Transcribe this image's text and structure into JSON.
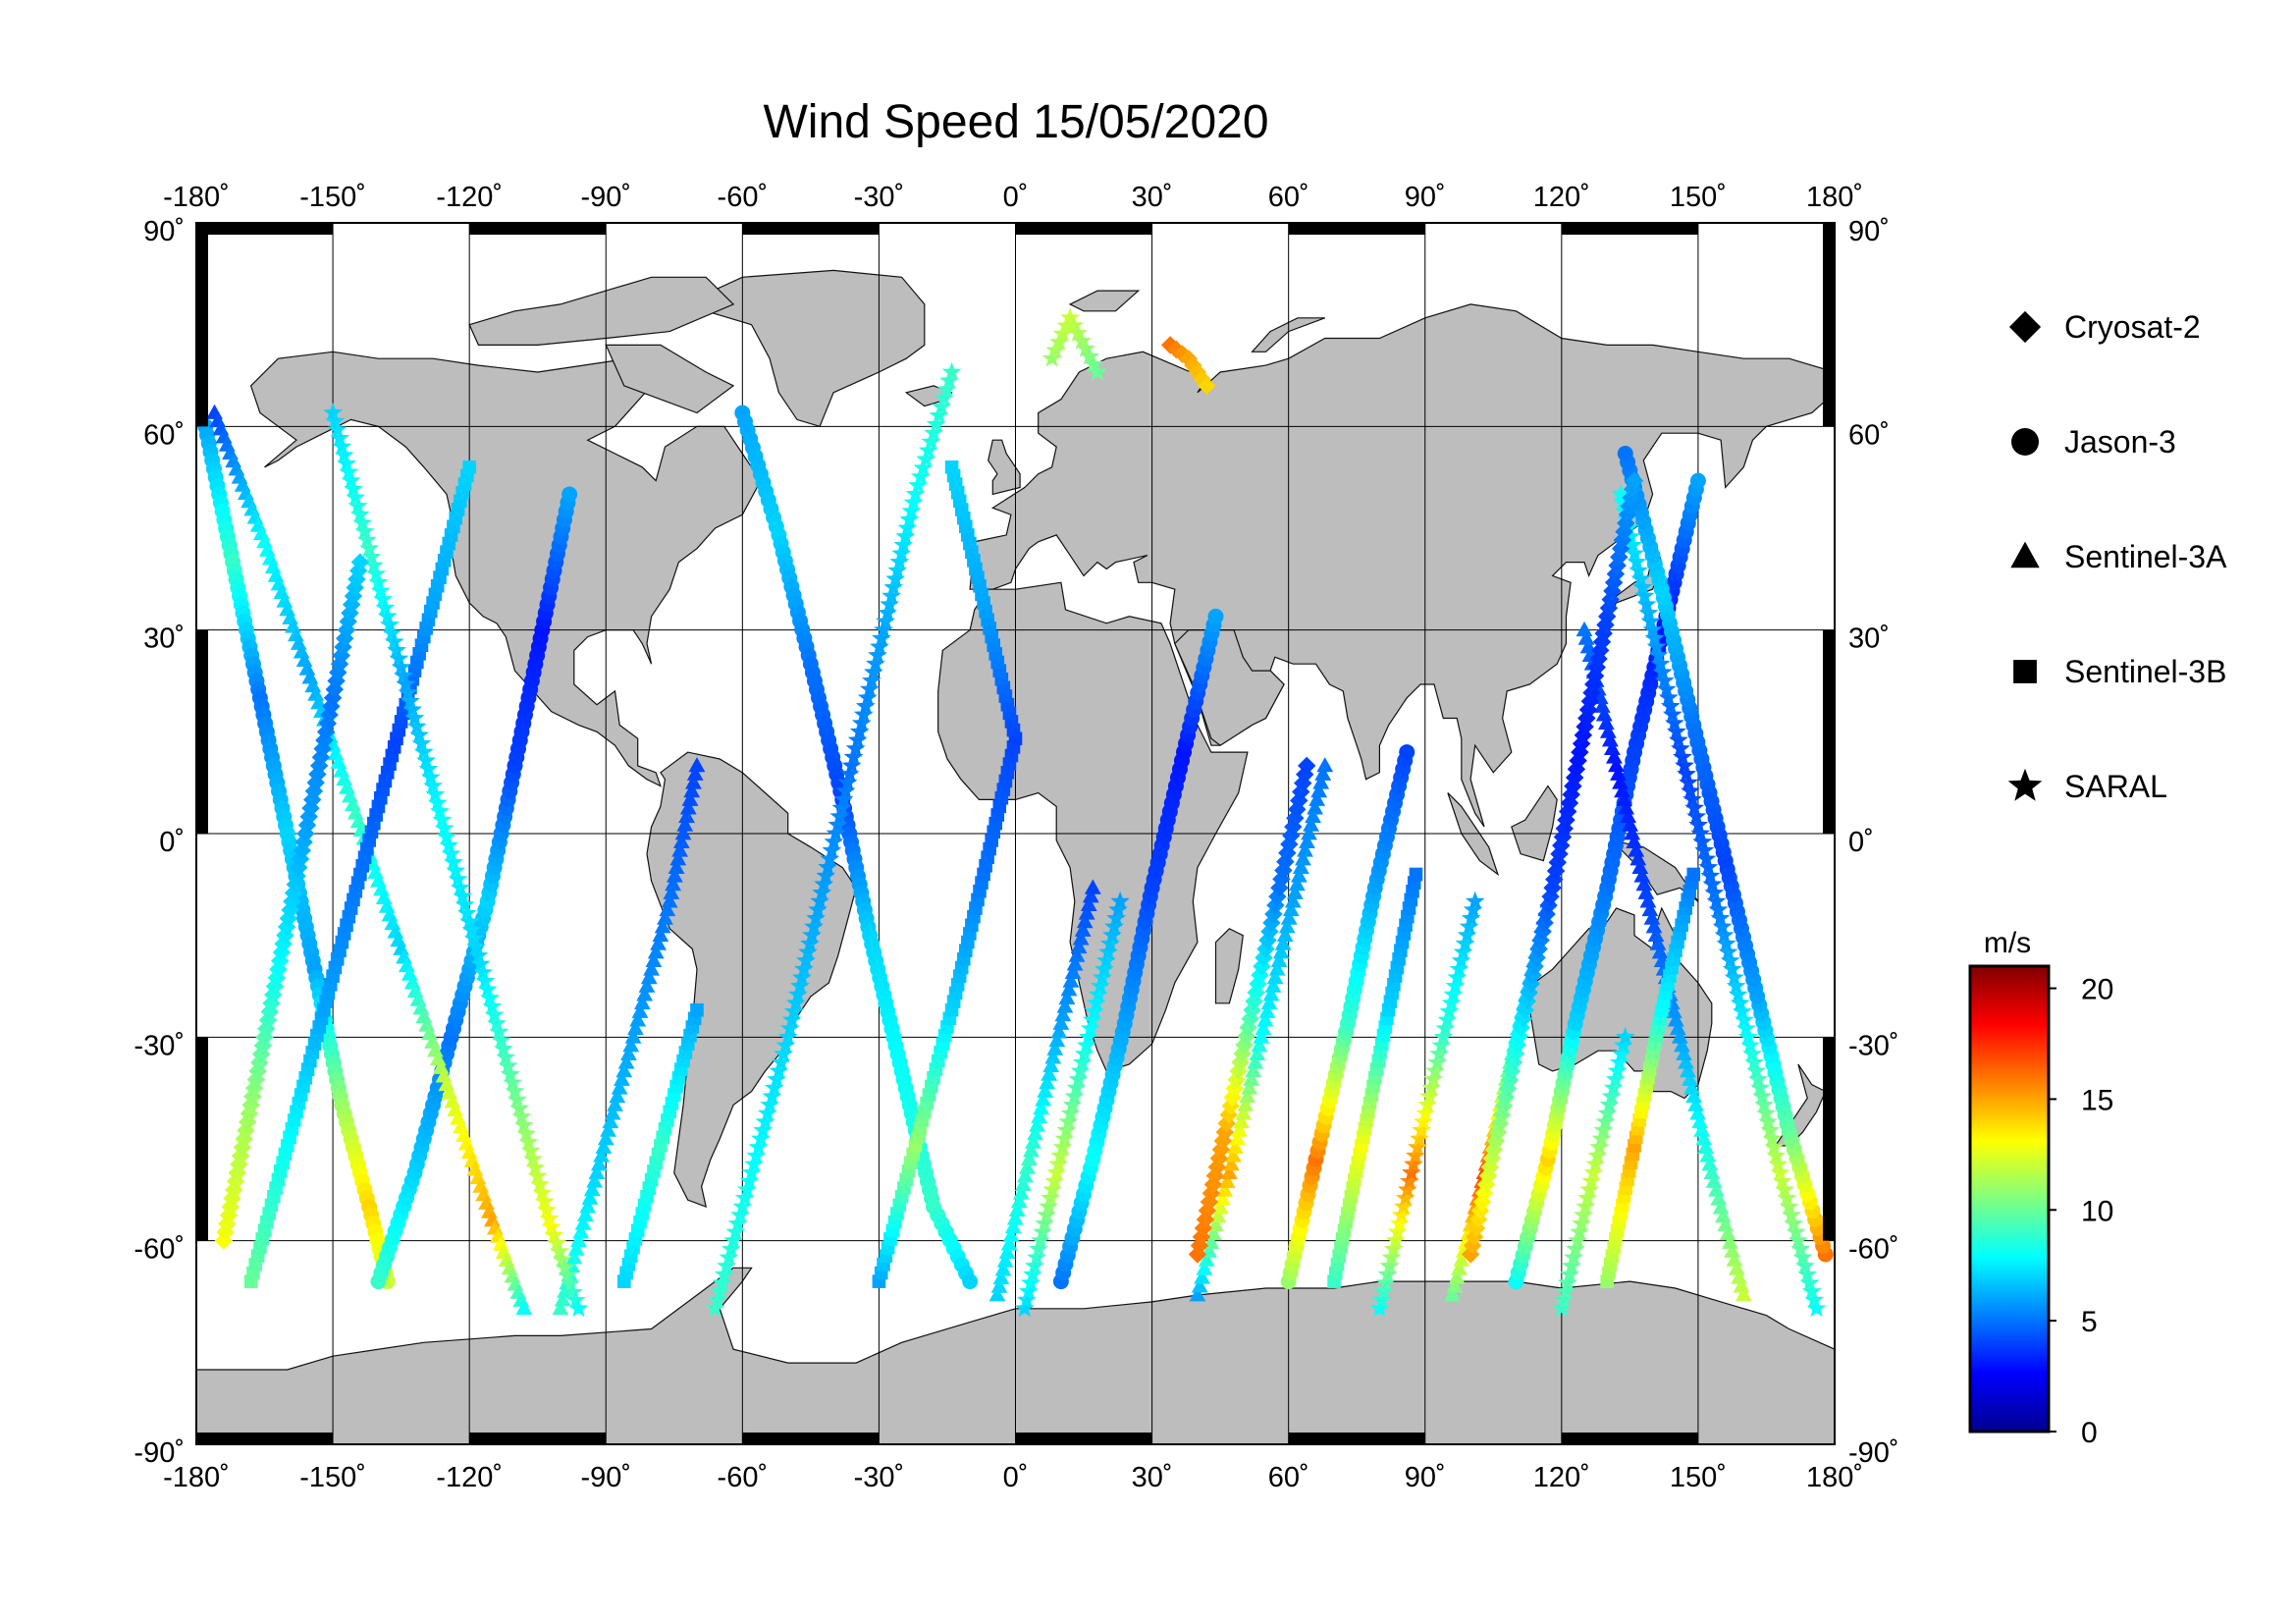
{
  "title": "Wind Speed 15/05/2020",
  "colors": {
    "land": "#bdbdbd",
    "coast": "#111111",
    "grid": "#000000",
    "ocean": "#ffffff"
  },
  "axes": {
    "lon_ticks": [
      "-180˚",
      "-150˚",
      "-120˚",
      "-90˚",
      "-60˚",
      "-30˚",
      "0˚",
      "30˚",
      "60˚",
      "90˚",
      "120˚",
      "150˚",
      "180˚"
    ],
    "lat_ticks_left": [
      "90˚",
      "60˚",
      "30˚",
      "0˚",
      "-30˚",
      "-60˚",
      "-90˚"
    ],
    "lat_ticks_right": [
      "90˚",
      "60˚",
      "30˚",
      "0˚",
      "-30˚",
      "-60˚",
      "-90˚"
    ],
    "lon_range": [
      -180,
      180
    ],
    "lat_range": [
      -90,
      90
    ],
    "grid": true
  },
  "legend": {
    "placement": "right",
    "items": [
      {
        "label": "Cryosat-2",
        "symbol": "diamond"
      },
      {
        "label": "Jason-3",
        "symbol": "circle"
      },
      {
        "label": "Sentinel-3A",
        "symbol": "triangle"
      },
      {
        "label": "Sentinel-3B",
        "symbol": "square"
      },
      {
        "label": "SARAL",
        "symbol": "star"
      }
    ]
  },
  "colorbar": {
    "unit": "m/s",
    "min": 0,
    "max": 21,
    "tick_values": [
      0,
      5,
      10,
      15,
      20
    ],
    "tick_labels": [
      "0",
      "5",
      "10",
      "15",
      "20"
    ],
    "colormap": [
      "#00008f",
      "#0000ff",
      "#0080ff",
      "#00ffff",
      "#80ff80",
      "#ffff00",
      "#ff8000",
      "#ff0000",
      "#800000"
    ]
  },
  "chart_data": {
    "type": "scatter",
    "projection": "equirectangular",
    "value_name": "wind speed",
    "unit": "m/s",
    "tracks": [
      {
        "satellite": "Jason-3",
        "symbol": "circle",
        "points": [
          [
            -178,
            60,
            6
          ],
          [
            -172,
            40,
            9
          ],
          [
            -166,
            20,
            5
          ],
          [
            -160,
            0,
            7
          ],
          [
            -154,
            -20,
            6
          ],
          [
            -148,
            -40,
            11
          ],
          [
            -142,
            -55,
            14
          ],
          [
            -138,
            -66,
            12
          ]
        ]
      },
      {
        "satellite": "Jason-3",
        "symbol": "circle",
        "points": [
          [
            -140,
            -66,
            9
          ],
          [
            -132,
            -50,
            7
          ],
          [
            -124,
            -30,
            5
          ],
          [
            -116,
            -10,
            7
          ],
          [
            -110,
            10,
            4
          ],
          [
            -104,
            30,
            3
          ],
          [
            -98,
            50,
            6
          ]
        ]
      },
      {
        "satellite": "Jason-3",
        "symbol": "circle",
        "points": [
          [
            -60,
            62,
            6
          ],
          [
            -52,
            44,
            7
          ],
          [
            -45,
            25,
            5
          ],
          [
            -38,
            5,
            4
          ],
          [
            -32,
            -15,
            7
          ],
          [
            -25,
            -35,
            8
          ],
          [
            -18,
            -55,
            9
          ],
          [
            -10,
            -66,
            7
          ]
        ]
      },
      {
        "satellite": "Jason-3",
        "symbol": "circle",
        "points": [
          [
            10,
            -66,
            5
          ],
          [
            17,
            -48,
            8
          ],
          [
            24,
            -28,
            6
          ],
          [
            30,
            -8,
            4
          ],
          [
            37,
            12,
            3
          ],
          [
            44,
            32,
            6
          ]
        ]
      },
      {
        "satellite": "Jason-3",
        "symbol": "circle",
        "points": [
          [
            60,
            -66,
            11
          ],
          [
            66,
            -48,
            16
          ],
          [
            73,
            -28,
            9
          ],
          [
            79,
            -8,
            6
          ],
          [
            86,
            12,
            4
          ]
        ]
      },
      {
        "satellite": "Jason-3",
        "symbol": "circle",
        "points": [
          [
            110,
            -66,
            8
          ],
          [
            117,
            -48,
            14
          ],
          [
            123,
            -28,
            7
          ],
          [
            130,
            -8,
            5
          ],
          [
            136,
            12,
            4
          ],
          [
            143,
            32,
            3
          ],
          [
            150,
            52,
            6
          ]
        ]
      },
      {
        "satellite": "Jason-3",
        "symbol": "circle",
        "points": [
          [
            178,
            -62,
            16
          ],
          [
            170,
            -44,
            10
          ],
          [
            163,
            -24,
            6
          ],
          [
            156,
            -4,
            4
          ],
          [
            149,
            16,
            5
          ],
          [
            142,
            36,
            7
          ],
          [
            134,
            56,
            5
          ]
        ]
      },
      {
        "satellite": "Sentinel-3A",
        "symbol": "triangle",
        "points": [
          [
            -176,
            62,
            4
          ],
          [
            -165,
            43,
            8
          ],
          [
            -155,
            23,
            6
          ],
          [
            -145,
            3,
            9
          ],
          [
            -135,
            -17,
            7
          ],
          [
            -125,
            -37,
            12
          ],
          [
            -115,
            -57,
            15
          ],
          [
            -108,
            -70,
            8
          ]
        ]
      },
      {
        "satellite": "Sentinel-3A",
        "symbol": "triangle",
        "points": [
          [
            -100,
            -70,
            9
          ],
          [
            -92,
            -50,
            7
          ],
          [
            -84,
            -30,
            6
          ],
          [
            -76,
            -10,
            5
          ],
          [
            -70,
            10,
            4
          ]
        ]
      },
      {
        "satellite": "Sentinel-3A",
        "symbol": "triangle",
        "points": [
          [
            -4,
            -68,
            7
          ],
          [
            3,
            -48,
            9
          ],
          [
            10,
            -28,
            6
          ],
          [
            17,
            -8,
            4
          ]
        ]
      },
      {
        "satellite": "Sentinel-3A",
        "symbol": "triangle",
        "points": [
          [
            40,
            -68,
            6
          ],
          [
            47,
            -50,
            15
          ],
          [
            54,
            -30,
            8
          ],
          [
            61,
            -10,
            6
          ],
          [
            68,
            10,
            5
          ]
        ]
      },
      {
        "satellite": "Sentinel-3A",
        "symbol": "triangle",
        "points": [
          [
            96,
            -68,
            10
          ],
          [
            103,
            -50,
            17
          ],
          [
            110,
            -30,
            8
          ],
          [
            117,
            -10,
            5
          ]
        ]
      },
      {
        "satellite": "Sentinel-3A",
        "symbol": "triangle",
        "points": [
          [
            160,
            -68,
            12
          ],
          [
            153,
            -50,
            9
          ],
          [
            146,
            -30,
            6
          ],
          [
            139,
            -10,
            4
          ],
          [
            132,
            10,
            3
          ],
          [
            125,
            30,
            5
          ]
        ]
      },
      {
        "satellite": "Sentinel-3B",
        "symbol": "square",
        "points": [
          [
            -168,
            -66,
            10
          ],
          [
            -160,
            -46,
            8
          ],
          [
            -152,
            -26,
            6
          ],
          [
            -144,
            -6,
            5
          ],
          [
            -136,
            14,
            4
          ],
          [
            -128,
            34,
            6
          ],
          [
            -120,
            54,
            7
          ]
        ]
      },
      {
        "satellite": "Sentinel-3B",
        "symbol": "square",
        "points": [
          [
            -86,
            -66,
            7
          ],
          [
            -78,
            -46,
            9
          ],
          [
            -70,
            -26,
            6
          ]
        ]
      },
      {
        "satellite": "Sentinel-3B",
        "symbol": "square",
        "points": [
          [
            -30,
            -66,
            6
          ],
          [
            -22,
            -46,
            11
          ],
          [
            -14,
            -26,
            7
          ],
          [
            -7,
            -6,
            5
          ],
          [
            0,
            14,
            4
          ],
          [
            -7,
            34,
            6
          ],
          [
            -14,
            54,
            7
          ]
        ]
      },
      {
        "satellite": "Sentinel-3B",
        "symbol": "square",
        "points": [
          [
            70,
            -66,
            9
          ],
          [
            76,
            -46,
            13
          ],
          [
            82,
            -26,
            7
          ],
          [
            88,
            -6,
            5
          ]
        ]
      },
      {
        "satellite": "Sentinel-3B",
        "symbol": "square",
        "points": [
          [
            130,
            -66,
            11
          ],
          [
            136,
            -46,
            15
          ],
          [
            142,
            -26,
            8
          ],
          [
            149,
            -6,
            5
          ]
        ]
      },
      {
        "satellite": "SARAL",
        "symbol": "star",
        "points": [
          [
            -150,
            62,
            7
          ],
          [
            -142,
            42,
            9
          ],
          [
            -134,
            22,
            6
          ],
          [
            -126,
            2,
            8
          ],
          [
            -118,
            -18,
            7
          ],
          [
            -110,
            -38,
            10
          ],
          [
            -102,
            -58,
            13
          ],
          [
            -96,
            -70,
            8
          ]
        ]
      },
      {
        "satellite": "SARAL",
        "symbol": "star",
        "points": [
          [
            -66,
            -70,
            9
          ],
          [
            -58,
            -50,
            8
          ],
          [
            -50,
            -30,
            7
          ],
          [
            -43,
            -10,
            6
          ],
          [
            -36,
            10,
            5
          ],
          [
            -29,
            30,
            6
          ],
          [
            -22,
            50,
            8
          ],
          [
            -14,
            68,
            9
          ]
        ]
      },
      {
        "satellite": "SARAL",
        "symbol": "star",
        "points": [
          [
            2,
            -70,
            7
          ],
          [
            9,
            -50,
            12
          ],
          [
            16,
            -30,
            8
          ],
          [
            23,
            -10,
            6
          ]
        ]
      },
      {
        "satellite": "SARAL",
        "symbol": "star",
        "points": [
          [
            8,
            70,
            11
          ],
          [
            12,
            76,
            12
          ],
          [
            18,
            68,
            10
          ]
        ]
      },
      {
        "satellite": "SARAL",
        "symbol": "star",
        "points": [
          [
            80,
            -70,
            8
          ],
          [
            87,
            -50,
            16
          ],
          [
            94,
            -30,
            9
          ],
          [
            101,
            -10,
            6
          ]
        ]
      },
      {
        "satellite": "SARAL",
        "symbol": "star",
        "points": [
          [
            120,
            -70,
            9
          ],
          [
            127,
            -50,
            12
          ],
          [
            134,
            -30,
            7
          ]
        ]
      },
      {
        "satellite": "SARAL",
        "symbol": "star",
        "points": [
          [
            176,
            -70,
            8
          ],
          [
            168,
            -50,
            12
          ],
          [
            161,
            -30,
            8
          ],
          [
            154,
            -10,
            5
          ],
          [
            147,
            10,
            4
          ],
          [
            140,
            30,
            6
          ],
          [
            133,
            50,
            8
          ]
        ]
      },
      {
        "satellite": "Cryosat-2",
        "symbol": "diamond",
        "points": [
          [
            -174,
            -60,
            13
          ],
          [
            -168,
            -40,
            11
          ],
          [
            -162,
            -20,
            8
          ],
          [
            -156,
            0,
            6
          ],
          [
            -150,
            20,
            5
          ],
          [
            -144,
            40,
            7
          ]
        ]
      },
      {
        "satellite": "Cryosat-2",
        "symbol": "diamond",
        "points": [
          [
            34,
            72,
            16
          ],
          [
            38,
            70,
            15
          ],
          [
            42,
            66,
            14
          ]
        ]
      },
      {
        "satellite": "Cryosat-2",
        "symbol": "diamond",
        "points": [
          [
            40,
            -62,
            16
          ],
          [
            46,
            -44,
            15
          ],
          [
            52,
            -26,
            9
          ],
          [
            58,
            -8,
            5
          ],
          [
            64,
            10,
            4
          ]
        ]
      },
      {
        "satellite": "Cryosat-2",
        "symbol": "diamond",
        "points": [
          [
            100,
            -62,
            15
          ],
          [
            106,
            -44,
            11
          ],
          [
            112,
            -26,
            7
          ],
          [
            118,
            -8,
            4
          ],
          [
            124,
            12,
            3
          ],
          [
            130,
            32,
            4
          ],
          [
            136,
            52,
            6
          ]
        ]
      }
    ]
  }
}
